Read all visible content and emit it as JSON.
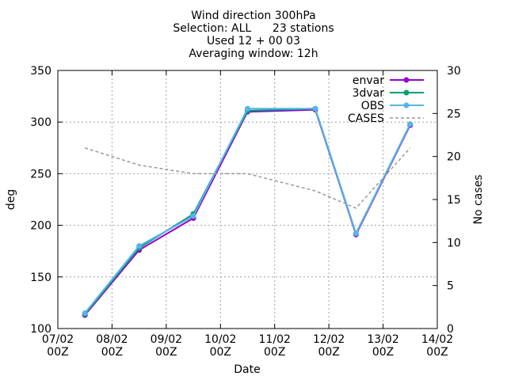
{
  "title_lines": [
    "Wind direction 300hPa",
    "Selection: ALL      23 stations",
    "Used 12 + 00 03",
    "Averaging window: 12h"
  ],
  "chart_data": {
    "type": "line",
    "xlabel": "Date",
    "ylabel": "deg",
    "y2label": "No cases",
    "xlim": [
      "07/02 00Z",
      "14/02 00Z"
    ],
    "ylim": [
      100,
      350
    ],
    "y2lim": [
      0,
      30
    ],
    "yticks": [
      100,
      150,
      200,
      250,
      300,
      350
    ],
    "y2ticks": [
      0,
      5,
      10,
      15,
      20,
      25,
      30
    ],
    "xticks": [
      {
        "line1": "07/02",
        "line2": "00Z",
        "day": 0
      },
      {
        "line1": "08/02",
        "line2": "00Z",
        "day": 1
      },
      {
        "line1": "09/02",
        "line2": "00Z",
        "day": 2
      },
      {
        "line1": "10/02",
        "line2": "00Z",
        "day": 3
      },
      {
        "line1": "11/02",
        "line2": "00Z",
        "day": 4
      },
      {
        "line1": "12/02",
        "line2": "00Z",
        "day": 5
      },
      {
        "line1": "13/02",
        "line2": "00Z",
        "day": 6
      },
      {
        "line1": "14/02",
        "line2": "00Z",
        "day": 7
      }
    ],
    "grid": true,
    "legend_position": "top-right",
    "series": [
      {
        "name": "envar",
        "color": "#9400d3",
        "axis": "y",
        "dash": false,
        "marker": true,
        "x": [
          0.5,
          1.5,
          2.5,
          3.5,
          4.75,
          5.5,
          6.5
        ],
        "y": [
          113,
          176,
          207,
          310,
          312,
          191,
          297
        ]
      },
      {
        "name": "3dvar",
        "color": "#009e73",
        "axis": "y",
        "dash": false,
        "marker": true,
        "x": [
          0.5,
          1.5,
          2.5,
          3.5,
          4.75,
          5.5,
          6.5
        ],
        "y": [
          114,
          178,
          211,
          311,
          313,
          192,
          298
        ]
      },
      {
        "name": "OBS",
        "color": "#56b4e9",
        "axis": "y",
        "dash": false,
        "marker": true,
        "x": [
          0.5,
          1.5,
          2.5,
          3.5,
          4.75,
          5.5,
          6.5
        ],
        "y": [
          115,
          180,
          209,
          313,
          313,
          192,
          298
        ]
      },
      {
        "name": "CASES",
        "color": "#999999",
        "axis": "y2",
        "dash": true,
        "marker": false,
        "x": [
          0.5,
          1.5,
          2.5,
          3.5,
          4.75,
          5.5,
          6.5
        ],
        "y": [
          21,
          19,
          18,
          18,
          16,
          14,
          21
        ]
      }
    ]
  }
}
